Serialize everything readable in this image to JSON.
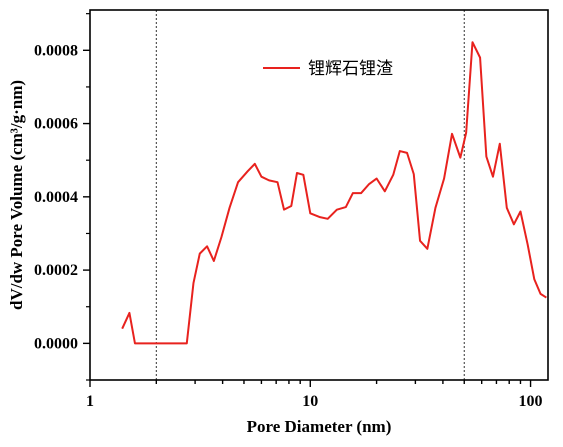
{
  "chart_data": {
    "type": "line",
    "title": "",
    "xlabel": "Pore Diameter (nm)",
    "ylabel": "dV/dw Pore Volume (cm³/g·nm)",
    "x_scale": "log",
    "xlim": [
      1,
      120
    ],
    "ylim": [
      -0.0001,
      0.00091
    ],
    "x_ticks": [
      1,
      10,
      100
    ],
    "x_tick_labels": [
      "1",
      "10",
      "100"
    ],
    "y_ticks": [
      0.0,
      0.0002,
      0.0004,
      0.0006,
      0.0008
    ],
    "y_tick_labels": [
      "0.0000",
      "0.0002",
      "0.0004",
      "0.0006",
      "0.0008"
    ],
    "reference_lines_x": [
      2,
      50
    ],
    "legend_position": "top-center",
    "series": [
      {
        "name": "锂辉石锂渣",
        "color": "#e8221e",
        "x": [
          1.4,
          1.51,
          1.6,
          2.0,
          2.5,
          2.75,
          2.95,
          3.15,
          3.4,
          3.65,
          3.95,
          4.3,
          4.7,
          5.2,
          5.6,
          6.0,
          6.5,
          7.1,
          7.6,
          8.2,
          8.7,
          9.3,
          10.0,
          11.0,
          12.0,
          13.2,
          14.5,
          15.6,
          17.0,
          18.5,
          20.0,
          21.8,
          23.8,
          25.5,
          27.5,
          29.5,
          31.5,
          34.0,
          37.0,
          40.5,
          44.0,
          48.0,
          51.0,
          54.5,
          59.0,
          63.0,
          67.5,
          72.5,
          78.0,
          84.0,
          90.0,
          97.0,
          104.0,
          111.0,
          118.0
        ],
        "y": [
          4e-05,
          8.3e-05,
          0.0,
          0.0,
          0.0,
          0.0,
          0.000165,
          0.000245,
          0.000265,
          0.000225,
          0.00029,
          0.00037,
          0.00044,
          0.00047,
          0.00049,
          0.000455,
          0.000445,
          0.00044,
          0.000365,
          0.000375,
          0.000465,
          0.00046,
          0.000355,
          0.000345,
          0.00034,
          0.000365,
          0.000372,
          0.00041,
          0.00041,
          0.000435,
          0.00045,
          0.000415,
          0.00046,
          0.000525,
          0.00052,
          0.000462,
          0.00028,
          0.000258,
          0.00037,
          0.00045,
          0.000572,
          0.000507,
          0.000575,
          0.000822,
          0.00078,
          0.00051,
          0.000455,
          0.000545,
          0.00037,
          0.000325,
          0.00036,
          0.00027,
          0.000175,
          0.000135,
          0.000125
        ]
      }
    ]
  }
}
